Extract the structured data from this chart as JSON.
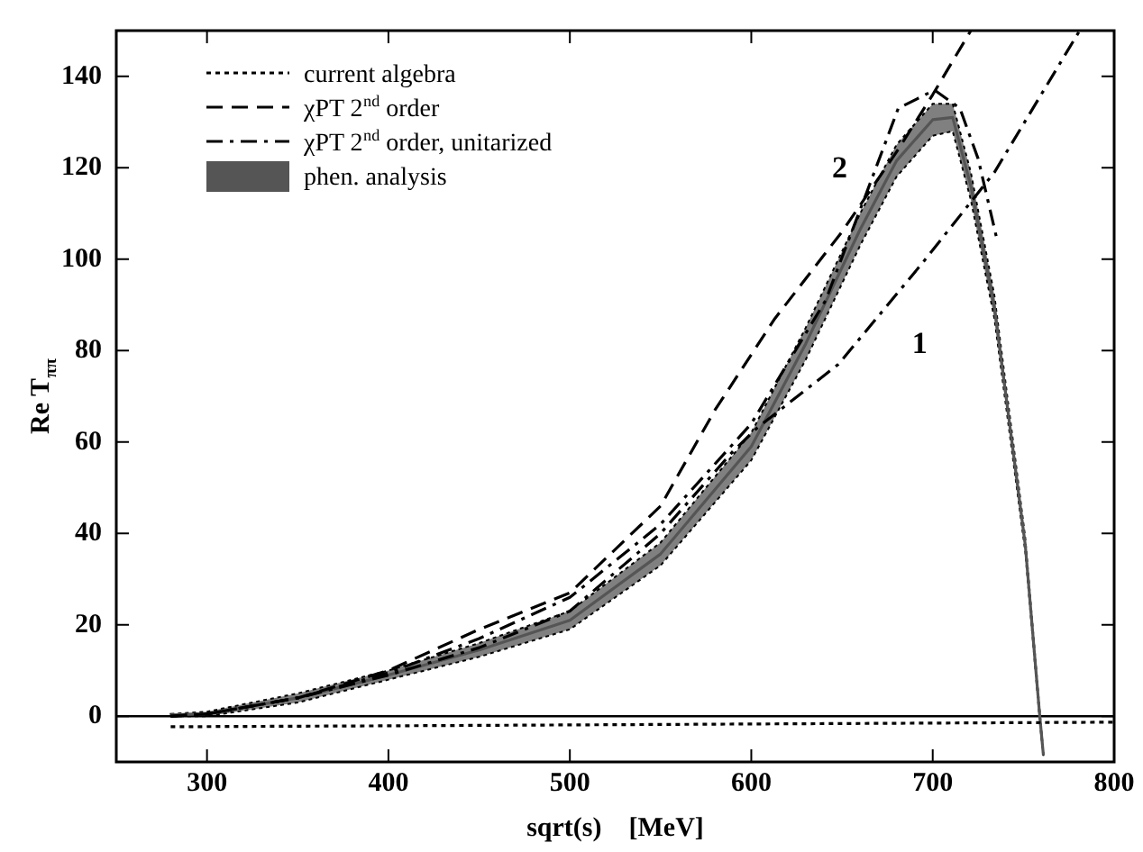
{
  "chart_data": {
    "type": "line",
    "xlabel": "sqrt(s)    [MeV]",
    "ylabel": "Re T$_{ππ}$",
    "xlim": [
      250,
      800
    ],
    "xticks": [
      300,
      400,
      500,
      600,
      700,
      800
    ],
    "ylim": [
      -10,
      150
    ],
    "yticks": [
      0,
      20,
      40,
      60,
      80,
      100,
      120,
      140
    ],
    "legend": "top left",
    "grid": false,
    "series": [
      {
        "name": "current algebra",
        "color": "#000000",
        "line_style": "dotted",
        "x": [
          280,
          400,
          500,
          600,
          700,
          800
        ],
        "values": [
          -2.3,
          -2.1,
          -1.9,
          -1.7,
          -1.5,
          -1.3
        ]
      },
      {
        "name": "χPT 2$^{nd}$ order",
        "color": "#000000",
        "line_style": "dashed",
        "x": [
          280,
          300,
          350,
          400,
          450,
          500,
          550,
          580,
          613,
          650,
          681,
          700,
          721
        ],
        "values": [
          0,
          0.5,
          4,
          10,
          19,
          27,
          46,
          67,
          87,
          106,
          124,
          136,
          150
        ]
      },
      {
        "name": "χPT 2$^{nd}$ order, unitarized",
        "color": "#000000",
        "line_style": "dashdot",
        "x": [
          280,
          300,
          350,
          400,
          450,
          500,
          550,
          590,
          603,
          648,
          694,
          734,
          781
        ],
        "values": [
          0,
          0.5,
          4,
          9,
          15,
          23,
          40,
          58,
          63,
          77,
          99,
          119,
          150
        ]
      },
      {
        "color": "#000000",
        "line_style": "dashdot",
        "x": [
          280,
          300,
          350,
          400,
          450,
          500,
          550,
          600,
          641,
          664,
          681,
          701,
          715,
          725,
          735
        ],
        "values": [
          0,
          0.5,
          4,
          9.5,
          17,
          26,
          42,
          64,
          91,
          115,
          133,
          137,
          133,
          122,
          105
        ]
      },
      {
        "name": "phen. analysis",
        "color": "#555555",
        "x": [
          280,
          300,
          350,
          400,
          450,
          500,
          550,
          600,
          630,
          660,
          680,
          700,
          711,
          721,
          734,
          744,
          751,
          759,
          761
        ],
        "values": [
          0.3,
          0.5,
          4,
          9,
          14.5,
          21,
          35.5,
          59,
          81.5,
          106.5,
          121.5,
          130.5,
          131,
          116,
          89.5,
          59,
          37.5,
          0,
          -8.5
        ],
        "lower": [
          0,
          0,
          3,
          8,
          13,
          19,
          33,
          56,
          78,
          103,
          118,
          127,
          128,
          113,
          87,
          57,
          36,
          -1,
          -9
        ],
        "upper": [
          0.5,
          1,
          5,
          10,
          16,
          23,
          38,
          62,
          85,
          110,
          125,
          134,
          134,
          119,
          92,
          61,
          39,
          1,
          -8
        ]
      }
    ],
    "ref_lines": [
      {
        "axis": "y",
        "value": 0,
        "color": "#000000",
        "line_style": "solid"
      }
    ],
    "annotations": [
      "1",
      "2"
    ]
  }
}
